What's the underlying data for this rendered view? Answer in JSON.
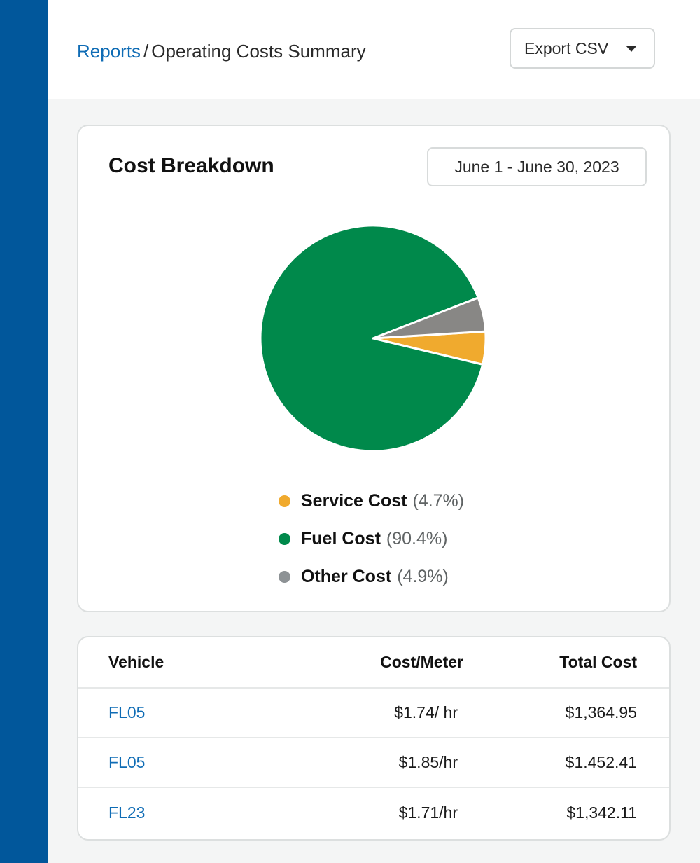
{
  "breadcrumb": {
    "parent": "Reports",
    "separator": "/",
    "current": "Operating Costs Summary"
  },
  "toolbar": {
    "export_label": "Export CSV"
  },
  "cost_breakdown": {
    "title": "Cost Breakdown",
    "date_range": "June 1 - June 30, 2023"
  },
  "chart_data": {
    "type": "pie",
    "slices": [
      {
        "label": "Service Cost",
        "value": 4.7,
        "pct_text": "(4.7%)",
        "color": "#f0aa2e"
      },
      {
        "label": "Fuel Cost",
        "value": 90.4,
        "pct_text": "(90.4%)",
        "color": "#00894b"
      },
      {
        "label": "Other Cost",
        "value": 4.9,
        "pct_text": "(4.9%)",
        "color": "#888785"
      }
    ],
    "legend_position": "bottom",
    "legend_dot_colors": [
      "#f0aa2e",
      "#00894b",
      "#8d9295"
    ]
  },
  "vehicle_table": {
    "columns": [
      "Vehicle",
      "Cost/Meter",
      "Total Cost"
    ],
    "rows": [
      {
        "vehicle": "FL05",
        "cost_meter": "$1.74/ hr",
        "total": "$1,364.95"
      },
      {
        "vehicle": "FL05",
        "cost_meter": "$1.85/hr",
        "total": "$1.452.41"
      },
      {
        "vehicle": "FL23",
        "cost_meter": "$1.71/hr",
        "total": "$1,342.11"
      }
    ]
  },
  "colors": {
    "sidebar": "#01579b",
    "link": "#0f6cb5"
  }
}
